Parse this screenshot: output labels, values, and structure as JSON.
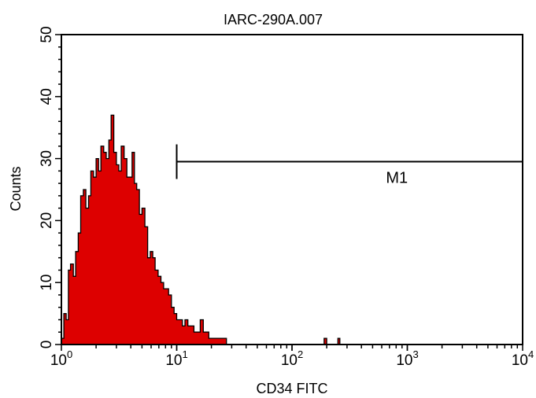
{
  "chart_data": {
    "type": "area",
    "title": "IARC-290A.007",
    "xlabel": "CD34 FITC",
    "ylabel": "Counts",
    "x_scale": "log",
    "xlim": [
      1,
      10000
    ],
    "ylim": [
      0,
      50
    ],
    "x_ticks": [
      {
        "base": "10",
        "exp": "0",
        "value": 1
      },
      {
        "base": "10",
        "exp": "1",
        "value": 10
      },
      {
        "base": "10",
        "exp": "2",
        "value": 100
      },
      {
        "base": "10",
        "exp": "3",
        "value": 1000
      },
      {
        "base": "10",
        "exp": "4",
        "value": 10000
      }
    ],
    "y_ticks": [
      "0",
      "10",
      "20",
      "30",
      "40",
      "50"
    ],
    "fill_color": "#dd0000",
    "outline_color": "#000000",
    "series": [
      {
        "x": [
          1.0,
          1.05,
          1.1,
          1.15,
          1.2,
          1.27,
          1.33,
          1.4,
          1.47,
          1.55,
          1.63,
          1.72,
          1.8,
          1.9,
          2.0,
          2.1,
          2.2,
          2.33,
          2.45,
          2.58,
          2.7,
          2.85,
          3.0,
          3.15,
          3.3,
          3.5,
          3.7,
          3.9,
          4.1,
          4.3,
          4.5,
          4.75,
          5.0,
          5.3,
          5.6,
          5.9,
          6.2,
          6.5,
          6.9,
          7.3,
          7.7,
          8.1,
          8.5,
          9.0,
          9.5,
          10.0,
          10.6,
          11.2,
          11.8,
          12.5,
          13.3,
          14.1,
          15.0,
          16.0,
          17.0,
          18.0,
          19.0,
          20.0,
          21.0,
          22.0,
          23.5,
          25.0,
          27.0,
          30.0,
          40.0,
          60.0,
          100.0,
          150.0,
          180.0,
          190.0,
          200.0,
          210.0,
          230.0,
          250.0,
          260.0,
          270.0,
          300.0,
          500.0,
          1000.0,
          3000.0,
          10000.0
        ],
        "y": [
          1,
          5,
          4,
          12,
          13,
          11,
          15,
          18,
          24,
          25,
          22,
          24,
          28,
          27,
          30,
          28,
          32,
          31,
          30,
          33,
          37,
          31,
          29,
          28,
          32,
          30,
          27,
          27,
          31,
          26,
          25,
          21,
          22,
          19,
          14,
          15,
          14,
          12,
          11,
          10,
          9,
          9,
          8,
          6,
          5,
          4,
          4,
          3,
          4,
          3,
          3,
          2,
          2,
          4,
          2,
          2,
          1,
          1,
          1,
          1,
          1,
          1,
          0,
          0,
          0,
          0,
          0,
          0,
          0,
          1,
          0,
          0,
          0,
          1,
          0,
          0,
          0,
          0,
          0,
          0,
          0
        ]
      }
    ],
    "markers": [
      {
        "label": "M1",
        "x_start": 10,
        "x_end": 10000,
        "y": 29.5
      }
    ]
  }
}
